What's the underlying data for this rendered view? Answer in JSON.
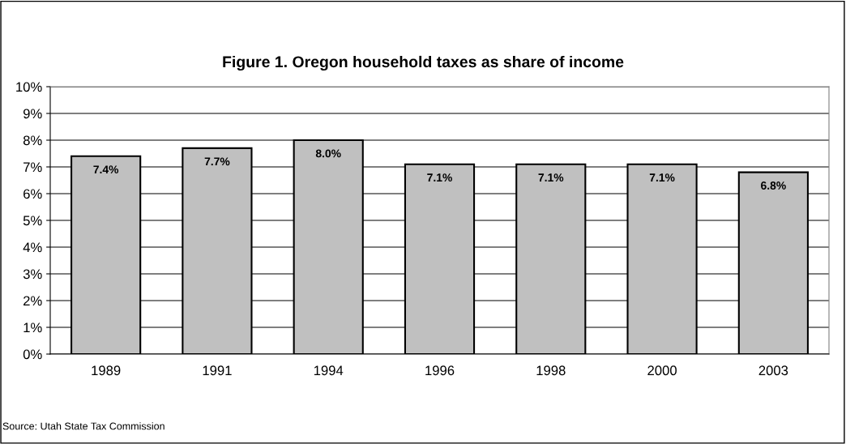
{
  "chart_data": {
    "type": "bar",
    "title": "Figure 1. Oregon household taxes as share of income",
    "categories": [
      "1989",
      "1991",
      "1994",
      "1996",
      "1998",
      "2000",
      "2003"
    ],
    "values": [
      7.4,
      7.7,
      8.0,
      7.1,
      7.1,
      7.1,
      6.8
    ],
    "value_labels": [
      "7.4%",
      "7.7%",
      "8.0%",
      "7.1%",
      "7.1%",
      "7.1%",
      "6.8%"
    ],
    "color": "#c0c0c0",
    "ylim": [
      0,
      10
    ],
    "yticks": [
      {
        "value": 0,
        "label": "0%"
      },
      {
        "value": 1,
        "label": "1%"
      },
      {
        "value": 2,
        "label": "2%"
      },
      {
        "value": 3,
        "label": "3%"
      },
      {
        "value": 4,
        "label": "4%"
      },
      {
        "value": 5,
        "label": "5%"
      },
      {
        "value": 6,
        "label": "6%"
      },
      {
        "value": 7,
        "label": "7%"
      },
      {
        "value": 8,
        "label": "8%"
      },
      {
        "value": 9,
        "label": "9%"
      },
      {
        "value": 10,
        "label": "10%"
      }
    ],
    "grid": "y",
    "annotations": [
      "Source: Utah State Tax Commission"
    ]
  }
}
